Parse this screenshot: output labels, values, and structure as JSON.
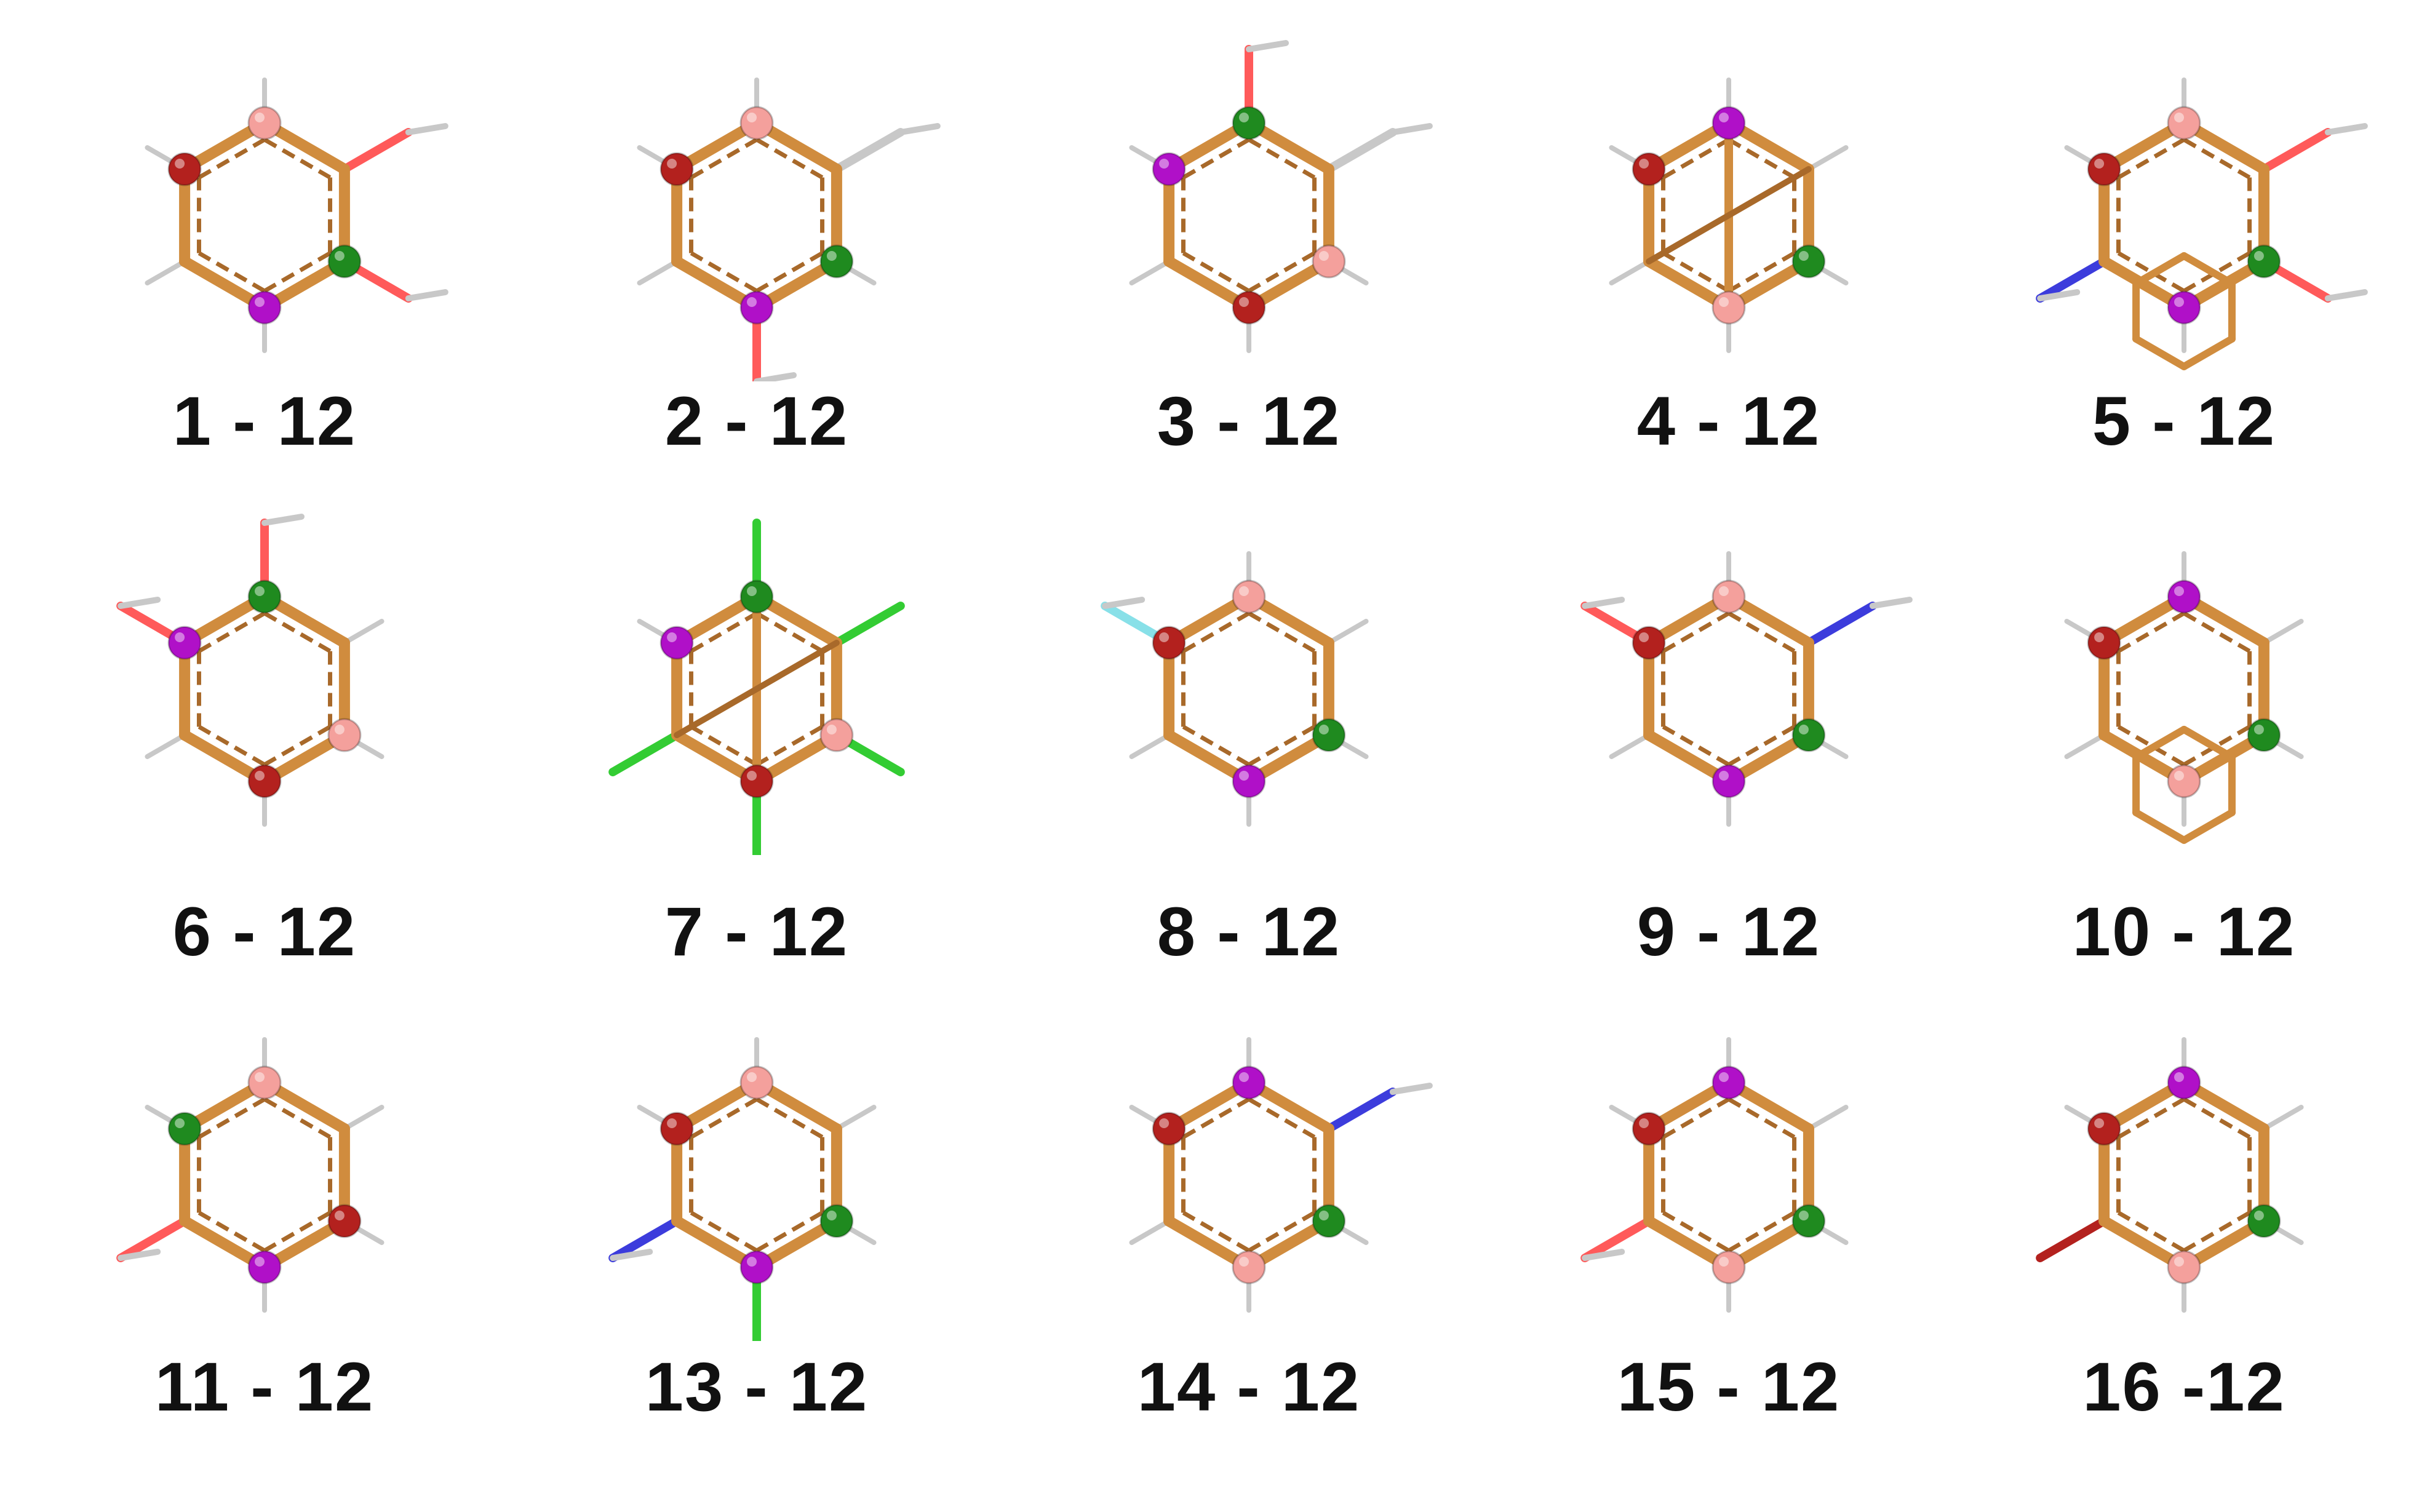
{
  "colors": {
    "bond": "#d08c3e",
    "bond_dark": "#a8692a",
    "hydrogen": "#c8c8c8",
    "oxygen": "#ff5a5a",
    "nitrogen": "#3c3cdc",
    "chlorine": "#33cc33",
    "fluorine": "#88e0e8",
    "sphere_red": "#b3211e",
    "sphere_pink": "#f4a09c",
    "sphere_green": "#1f8a1f",
    "sphere_purple": "#b010c8"
  },
  "panels": [
    {
      "label": "1 - 12",
      "layout": "ring",
      "spheres": [
        "pink",
        "green",
        "purple",
        "red"
      ],
      "subs": [
        "H",
        "O",
        "O",
        "H",
        "H",
        "H"
      ]
    },
    {
      "label": "2 - 12",
      "layout": "ring",
      "spheres": [
        "pink",
        "green",
        "purple",
        "red"
      ],
      "subs": [
        "H",
        "C",
        "H",
        "O",
        "H",
        "H"
      ]
    },
    {
      "label": "3 - 12",
      "layout": "ring",
      "spheres": [
        "green",
        "pink",
        "red",
        "purple"
      ],
      "subs": [
        "O",
        "C",
        "H",
        "H",
        "H",
        "H"
      ]
    },
    {
      "label": "4 - 12",
      "layout": "cage",
      "spheres": [
        "purple",
        "green",
        "pink",
        "red"
      ],
      "subs": [
        "H",
        "H",
        "H",
        "H",
        "H",
        "H"
      ]
    },
    {
      "label": "5 - 12",
      "layout": "fused",
      "spheres": [
        "pink",
        "green",
        "purple",
        "red"
      ],
      "subs": [
        "H",
        "O",
        "O",
        "H",
        "N",
        "H"
      ]
    },
    {
      "label": "6 - 12",
      "layout": "ring",
      "spheres": [
        "green",
        "pink",
        "red",
        "purple"
      ],
      "subs": [
        "O",
        "H",
        "H",
        "H",
        "H",
        "O"
      ]
    },
    {
      "label": "7 - 12",
      "layout": "cage",
      "spheres": [
        "green",
        "pink",
        "red",
        "purple"
      ],
      "subs": [
        "Cl",
        "Cl",
        "Cl",
        "Cl",
        "Cl",
        "H"
      ]
    },
    {
      "label": "8 - 12",
      "layout": "ring",
      "spheres": [
        "pink",
        "green",
        "purple",
        "red"
      ],
      "subs": [
        "H",
        "H",
        "H",
        "H",
        "H",
        "F"
      ]
    },
    {
      "label": "9 - 12",
      "layout": "ring",
      "spheres": [
        "pink",
        "green",
        "purple",
        "red"
      ],
      "subs": [
        "H",
        "N",
        "H",
        "H",
        "H",
        "O"
      ]
    },
    {
      "label": "10 - 12",
      "layout": "fused",
      "spheres": [
        "purple",
        "green",
        "pink",
        "red"
      ],
      "subs": [
        "H",
        "H",
        "H",
        "H",
        "H",
        "H"
      ]
    },
    {
      "label": "11 - 12",
      "layout": "ring",
      "spheres": [
        "pink",
        "red",
        "purple",
        "green"
      ],
      "subs": [
        "H",
        "H",
        "H",
        "H",
        "O",
        "H"
      ]
    },
    {
      "label": "13 - 12",
      "layout": "ring",
      "spheres": [
        "pink",
        "green",
        "purple",
        "red"
      ],
      "subs": [
        "H",
        "H",
        "H",
        "Cl",
        "N",
        "H"
      ]
    },
    {
      "label": "14 - 12",
      "layout": "ring",
      "spheres": [
        "purple",
        "green",
        "pink",
        "red"
      ],
      "subs": [
        "H",
        "N",
        "H",
        "H",
        "H",
        "H"
      ]
    },
    {
      "label": "15 - 12",
      "layout": "ring",
      "spheres": [
        "purple",
        "green",
        "pink",
        "red"
      ],
      "subs": [
        "H",
        "H",
        "H",
        "H",
        "O",
        "H"
      ]
    },
    {
      "label": "16 -12",
      "layout": "ring",
      "spheres": [
        "purple",
        "green",
        "pink",
        "red"
      ],
      "subs": [
        "H",
        "H",
        "H",
        "H",
        "Br",
        "H"
      ]
    }
  ]
}
